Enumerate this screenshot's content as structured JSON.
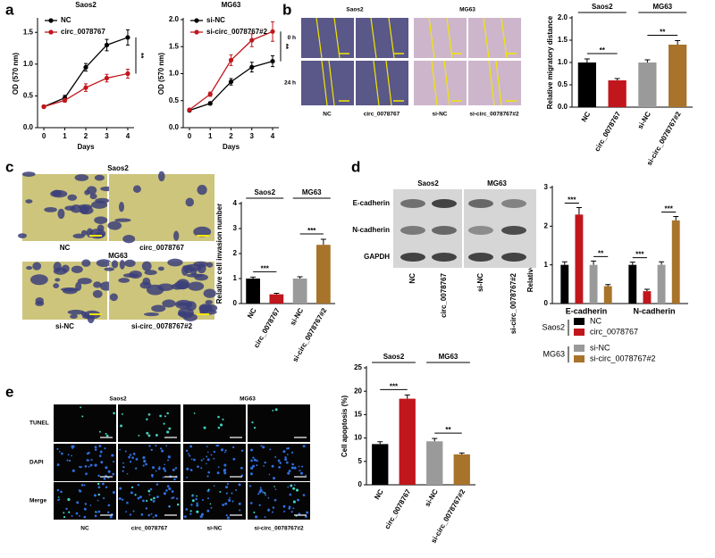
{
  "panel_labels": [
    "a",
    "b",
    "c",
    "d",
    "e"
  ],
  "chart_data": [
    {
      "type": "line",
      "title": "Saos2",
      "x_label": "Days",
      "y_label": "OD (570 nm)",
      "x": [
        0,
        1,
        2,
        3,
        4
      ],
      "xlim": [
        -0.3,
        4.3
      ],
      "xticks": [
        0,
        1,
        2,
        3,
        4
      ],
      "ylim": [
        0,
        1.7
      ],
      "yticks": [
        {
          "value": 0,
          "label": "0.0"
        },
        {
          "value": 0.5,
          "label": "0.5"
        },
        {
          "value": 1,
          "label": "1.0"
        },
        {
          "value": 1.5,
          "label": "1.5"
        }
      ],
      "series": [
        {
          "name": "NC",
          "color": "#000000",
          "values": [
            0.33,
            0.47,
            0.95,
            1.3,
            1.42
          ],
          "errors": [
            0.02,
            0.04,
            0.06,
            0.09,
            0.12
          ]
        },
        {
          "name": "circ_0078767",
          "color": "#c0161c",
          "values": [
            0.33,
            0.43,
            0.63,
            0.78,
            0.85
          ],
          "errors": [
            0.02,
            0.03,
            0.06,
            0.06,
            0.07
          ]
        }
      ],
      "annotation": "**"
    },
    {
      "type": "line",
      "title": "MG63",
      "x_label": "Days",
      "y_label": "OD (570 nm)",
      "x": [
        0,
        1,
        2,
        3,
        4
      ],
      "xlim": [
        -0.3,
        4.3
      ],
      "xticks": [
        0,
        1,
        2,
        3,
        4
      ],
      "ylim": [
        0,
        2
      ],
      "yticks": [
        {
          "value": 0,
          "label": "0.0"
        },
        {
          "value": 0.5,
          "label": "0.5"
        },
        {
          "value": 1,
          "label": "1.0"
        },
        {
          "value": 1.5,
          "label": "1.5"
        },
        {
          "value": 2,
          "label": "2.0"
        }
      ],
      "series": [
        {
          "name": "si-NC",
          "color": "#000000",
          "values": [
            0.32,
            0.45,
            0.85,
            1.12,
            1.23
          ],
          "errors": [
            0.02,
            0.03,
            0.06,
            0.09,
            0.1
          ]
        },
        {
          "name": "si-circ_0078767#2",
          "color": "#c0161c",
          "values": [
            0.33,
            0.62,
            1.25,
            1.62,
            1.78
          ],
          "errors": [
            0.02,
            0.04,
            0.1,
            0.12,
            0.18
          ]
        }
      ],
      "annotation": "**"
    },
    {
      "type": "bar",
      "y_label": "Relative migratory distance",
      "categories": [
        "NC",
        "circ_0078767",
        "si-NC",
        "si-circ_0078767#2"
      ],
      "values": [
        1.0,
        0.6,
        1.0,
        1.4
      ],
      "errors": [
        0.08,
        0.04,
        0.06,
        0.09
      ],
      "colors": [
        "#000000",
        "#c0161c",
        "#9a9a9a",
        "#a8732a"
      ],
      "ylim": [
        0,
        2
      ],
      "yticks": [
        {
          "value": 0,
          "label": "0.0"
        },
        {
          "value": 0.5,
          "label": "0.5"
        },
        {
          "value": 1,
          "label": "1.0"
        },
        {
          "value": 1.5,
          "label": "1.5"
        },
        {
          "value": 2,
          "label": "2.0"
        }
      ],
      "group_labels": [
        "Saos2",
        "MG63"
      ],
      "annotations": [
        "**",
        "**"
      ]
    },
    {
      "type": "bar",
      "y_label": "Relative cell invasion number",
      "categories": [
        "NC",
        "circ_0078767",
        "si-NC",
        "si-circ_0078767#2"
      ],
      "values": [
        1.0,
        0.37,
        1.0,
        2.35
      ],
      "errors": [
        0.06,
        0.04,
        0.07,
        0.22
      ],
      "colors": [
        "#000000",
        "#c0161c",
        "#9a9a9a",
        "#a8732a"
      ],
      "ylim": [
        0,
        4
      ],
      "yticks": [
        0,
        1,
        2,
        3,
        4
      ],
      "group_labels": [
        "Saos2",
        "MG63"
      ],
      "annotations": [
        "***",
        "***"
      ]
    },
    {
      "type": "bar",
      "y_label": "Relative protein expression",
      "categories": [
        "E-cadherin",
        "N-cadherin"
      ],
      "series": [
        {
          "name": "NC",
          "color": "#000000",
          "values": [
            1.0,
            1.0
          ],
          "errors": [
            0.08,
            0.07
          ]
        },
        {
          "name": "circ_0078767",
          "color": "#c0161c",
          "values": [
            2.3,
            0.32
          ],
          "errors": [
            0.18,
            0.05
          ]
        },
        {
          "name": "si-NC",
          "color": "#9a9a9a",
          "values": [
            1.0,
            1.0
          ],
          "errors": [
            0.1,
            0.08
          ]
        },
        {
          "name": "si-circ_0078767#2",
          "color": "#a8732a",
          "values": [
            0.45,
            2.15
          ],
          "errors": [
            0.04,
            0.1
          ]
        }
      ],
      "ylim": [
        0,
        3
      ],
      "yticks": [
        0,
        1,
        2,
        3
      ],
      "legend_groups": [
        "Saos2",
        "MG63"
      ],
      "annotations": [
        "***",
        "**",
        "***",
        "***"
      ]
    },
    {
      "type": "bar",
      "y_label": "Cell apoptosis (%)",
      "categories": [
        "NC",
        "circ_0078767",
        "si-NC",
        "si-circ_0078767#2"
      ],
      "values": [
        8.7,
        18.4,
        9.3,
        6.5
      ],
      "errors": [
        0.5,
        0.8,
        0.6,
        0.3
      ],
      "colors": [
        "#000000",
        "#c0161c",
        "#9a9a9a",
        "#a8732a"
      ],
      "ylim": [
        0,
        25
      ],
      "yticks": [
        0,
        5,
        10,
        15,
        20,
        25
      ],
      "group_labels": [
        "Saos2",
        "MG63"
      ],
      "annotations": [
        "***",
        "**"
      ]
    }
  ],
  "images": {
    "b": {
      "groups": [
        "Saos2",
        "MG63"
      ],
      "rows": [
        "0 h",
        "24 h"
      ],
      "columns": [
        "NC",
        "circ_0078767",
        "si-NC",
        "si-circ_0078767#2"
      ]
    },
    "c": {
      "groups": [
        "Saos2",
        "MG63"
      ],
      "columns": [
        "NC",
        "circ_0078767",
        "si-NC",
        "si-circ_0078767#2"
      ]
    },
    "d": {
      "groups": [
        "Saos2",
        "MG63"
      ],
      "rows": [
        "E-cadherin",
        "N-cadherin",
        "GAPDH"
      ],
      "columns": [
        "NC",
        "circ_0078767",
        "si-NC",
        "si-circ_0078767#2"
      ]
    },
    "e": {
      "groups": [
        "Saos2",
        "MG63"
      ],
      "rows": [
        "TUNEL",
        "DAPI",
        "Merge"
      ],
      "columns": [
        "NC",
        "circ_0078767",
        "si-NC",
        "si-circ_0078767#2"
      ]
    }
  }
}
